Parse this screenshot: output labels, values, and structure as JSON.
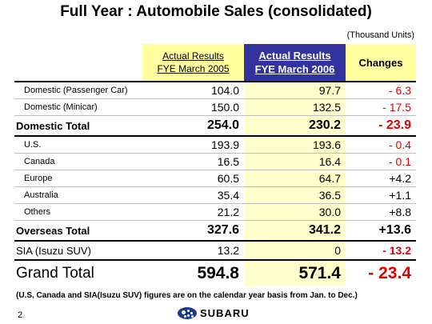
{
  "title": "Full Year : Automobile Sales (consolidated)",
  "units": "(Thousand Units)",
  "headers": {
    "col_a_line1": "Actual Results",
    "col_a_line2": "FYE March 2005",
    "col_b_line1": "Actual Results",
    "col_b_line2": "FYE March 2006",
    "col_c": "Changes"
  },
  "rows": [
    {
      "label": "Domestic (Passenger Car)",
      "a": "104.0",
      "b": "97.7",
      "change": "- 6.3"
    },
    {
      "label": "Domestic (Minicar)",
      "a": "150.0",
      "b": "132.5",
      "change": "- 17.5"
    },
    {
      "label": "Domestic Total",
      "a": "254.0",
      "b": "230.2",
      "change": "- 23.9"
    },
    {
      "label": "U.S.",
      "a": "193.9",
      "b": "193.6",
      "change": "- 0.4"
    },
    {
      "label": "Canada",
      "a": "16.5",
      "b": "16.4",
      "change": "- 0.1"
    },
    {
      "label": "Europe",
      "a": "60.5",
      "b": "64.7",
      "change": "+4.2"
    },
    {
      "label": "Australia",
      "a": "35.4",
      "b": "36.5",
      "change": "+1.1"
    },
    {
      "label": "Others",
      "a": "21.2",
      "b": "30.0",
      "change": "+8.8"
    },
    {
      "label": "Overseas Total",
      "a": "327.6",
      "b": "341.2",
      "change": "+13.6"
    },
    {
      "label": "SIA (Isuzu SUV)",
      "a": "13.2",
      "b": "0",
      "change": "- 13.2"
    },
    {
      "label": "Grand Total",
      "a": "594.8",
      "b": "571.4",
      "change": "- 23.4"
    }
  ],
  "note": "(U.S, Canada and SIA(Isuzu SUV) figures are on the calendar year basis from Jan. to Dec.)",
  "page_number": "2",
  "logo_text": "SUBARU",
  "colors": {
    "header_highlight": "#ffffa0",
    "header_dark": "#3333a0",
    "negative": "#e00000"
  }
}
